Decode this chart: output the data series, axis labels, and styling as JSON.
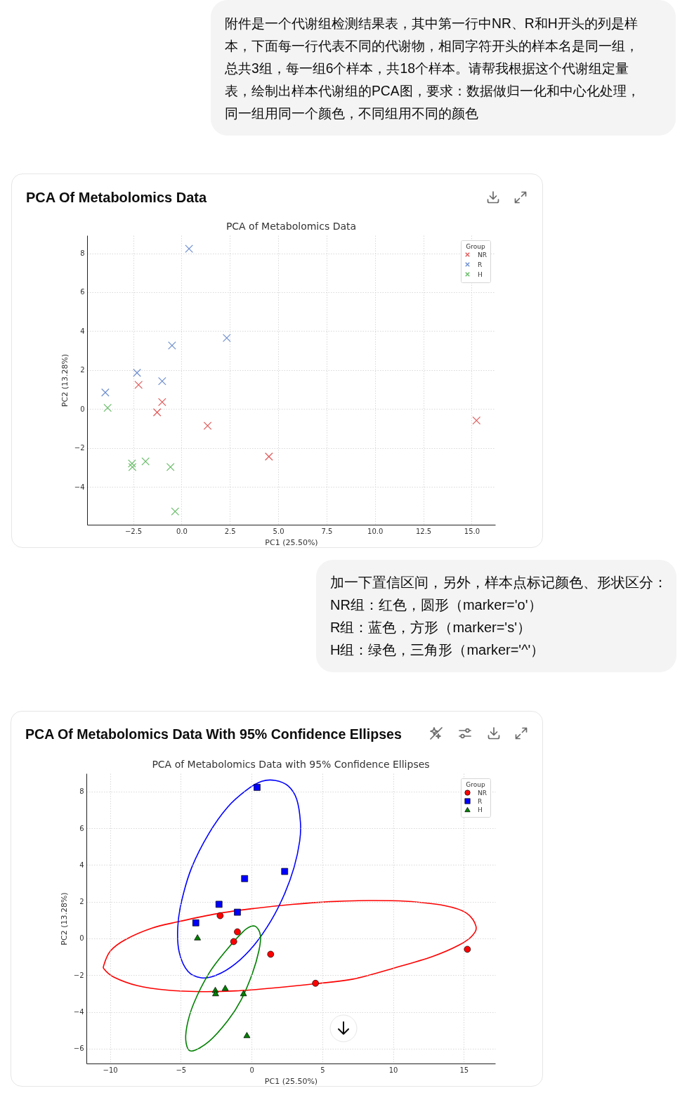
{
  "chart_data": [
    {
      "type": "other",
      "annotations": [
        "附件是一个代谢组检测结果表，其中第一行中NR、R和H开头的列是样本，下面每一行代表不同的代谢物，相同字符开头的样本名是同一组，总共3组，每一组6个样本，共18个样本。请帮我根据这个代谢组定量表，绘制出样本代谢组的PCA图，要求：数据做归一化和中心化处理，同一组用同一个颜色，不同组用不同的颜色"
      ]
    },
    {
      "type": "scatter",
      "title": "PCA Of Metabolomics Data",
      "subtitle": "PCA of Metabolomics Data",
      "xlabel": "PC1 (25.50%)",
      "ylabel": "PC2 (13.28%)",
      "legend_title": "Group",
      "legend": "top right",
      "grid": true,
      "marker": "cross",
      "xlim": [
        -4.88,
        16.22
      ],
      "ylim": [
        -5.94,
        8.92
      ],
      "xticks": [
        {
          "value": -2.5,
          "label": "−2.5"
        },
        {
          "value": 0,
          "label": "0.0"
        },
        2.5,
        {
          "value": 5,
          "label": "5.0"
        },
        7.5,
        {
          "value": 10,
          "label": "10.0"
        },
        12.5,
        {
          "value": 15,
          "label": "15.0"
        }
      ],
      "yticks": [
        {
          "value": -4,
          "label": "−4"
        },
        {
          "value": -2,
          "label": "−2"
        },
        0,
        2,
        4,
        6,
        8
      ],
      "series": [
        {
          "name": "NR",
          "color": "#e05a5a",
          "x": [
            -2.22,
            -1.0,
            -1.26,
            1.35,
            4.52,
            15.25
          ],
          "values": [
            1.24,
            0.36,
            -0.17,
            -0.86,
            -2.44,
            -0.59
          ]
        },
        {
          "name": "R",
          "color": "#6f8fcf",
          "x": [
            0.39,
            -0.49,
            2.34,
            -2.3,
            -1.0,
            -3.94
          ],
          "values": [
            8.23,
            3.26,
            3.65,
            1.86,
            1.43,
            0.85
          ]
        },
        {
          "name": "H",
          "color": "#66bb66",
          "x": [
            -3.82,
            -2.56,
            -2.54,
            -1.86,
            -0.57,
            -0.33
          ],
          "values": [
            0.06,
            -2.8,
            -2.98,
            -2.69,
            -2.98,
            -5.26
          ]
        }
      ]
    },
    {
      "type": "other",
      "annotations": [
        "加一下置信区间，另外，样本点标记颜色、形状区分：",
        "NR组：红色，圆形（marker='o'）",
        "R组：蓝色，方形（marker='s'）",
        "H组：绿色，三角形（marker='^'）"
      ]
    },
    {
      "type": "scatter",
      "title": "PCA Of Metabolomics Data With 95% Confidence Ellipses",
      "subtitle": "PCA of Metabolomics Data with 95% Confidence Ellipses",
      "xlabel": "PC1 (25.50%)",
      "ylabel": "PC2 (13.28%)",
      "legend_title": "Group",
      "legend": "top right",
      "grid": true,
      "xlim": [
        -11.67,
        17.22
      ],
      "ylim": [
        -6.81,
        8.99
      ],
      "xticks": [
        {
          "value": -10,
          "label": "−10"
        },
        {
          "value": -5,
          "label": "−5"
        },
        0,
        5,
        10,
        15
      ],
      "yticks": [
        {
          "value": -6,
          "label": "−6"
        },
        {
          "value": -4,
          "label": "−4"
        },
        {
          "value": -2,
          "label": "−2"
        },
        0,
        2,
        4,
        6,
        8
      ],
      "series": [
        {
          "name": "NR",
          "color": "#ff0000",
          "marker": "circle",
          "x": [
            -2.22,
            -1.0,
            -1.26,
            1.35,
            4.52,
            15.25
          ],
          "values": [
            1.24,
            0.36,
            -0.17,
            -0.86,
            -2.44,
            -0.59
          ]
        },
        {
          "name": "R",
          "color": "#0000ff",
          "marker": "square",
          "x": [
            0.39,
            -0.49,
            2.34,
            -2.3,
            -1.0,
            -3.94
          ],
          "values": [
            8.23,
            3.26,
            3.65,
            1.86,
            1.43,
            0.85
          ]
        },
        {
          "name": "H",
          "color": "#007f00",
          "marker": "triangle",
          "x": [
            -3.82,
            -2.56,
            -2.54,
            -1.86,
            -0.57,
            -0.33
          ],
          "values": [
            0.06,
            -2.8,
            -2.98,
            -2.69,
            -2.98,
            -5.26
          ]
        }
      ]
    }
  ]
}
